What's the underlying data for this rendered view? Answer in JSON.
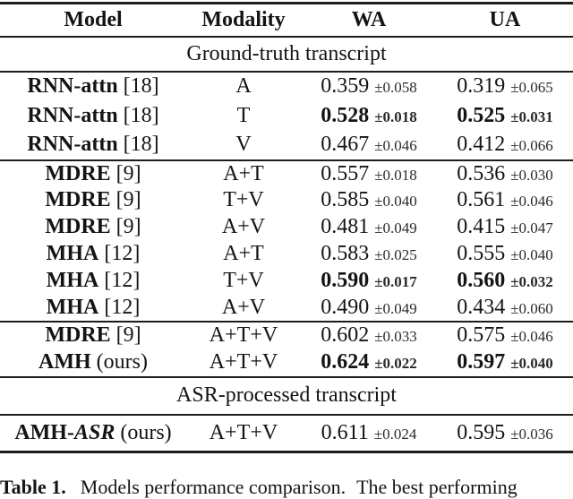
{
  "table": {
    "columns": [
      "Model",
      "Modality",
      "WA",
      "UA"
    ],
    "section1_label": "Ground-truth transcript",
    "section2_label": "ASR-processed transcript",
    "rows": [
      {
        "model": "RNN-attn",
        "ref": "[18]",
        "modality": "A",
        "wa": "0.359",
        "wa_err": "±0.058",
        "ua": "0.319",
        "ua_err": "±0.065"
      },
      {
        "model": "RNN-attn",
        "ref": "[18]",
        "modality": "T",
        "wa": "0.528",
        "wa_err": "±0.018",
        "ua": "0.525",
        "ua_err": "±0.031"
      },
      {
        "model": "RNN-attn",
        "ref": "[18]",
        "modality": "V",
        "wa": "0.467",
        "wa_err": "±0.046",
        "ua": "0.412",
        "ua_err": "±0.066"
      },
      {
        "model": "MDRE",
        "ref": "[9]",
        "modality": "A+T",
        "wa": "0.557",
        "wa_err": "±0.018",
        "ua": "0.536",
        "ua_err": "±0.030"
      },
      {
        "model": "MDRE",
        "ref": "[9]",
        "modality": "T+V",
        "wa": "0.585",
        "wa_err": "±0.040",
        "ua": "0.561",
        "ua_err": "±0.046"
      },
      {
        "model": "MDRE",
        "ref": "[9]",
        "modality": "A+V",
        "wa": "0.481",
        "wa_err": "±0.049",
        "ua": "0.415",
        "ua_err": "±0.047"
      },
      {
        "model": "MHA",
        "ref": "[12]",
        "modality": "A+T",
        "wa": "0.583",
        "wa_err": "±0.025",
        "ua": "0.555",
        "ua_err": "±0.040"
      },
      {
        "model": "MHA",
        "ref": "[12]",
        "modality": "T+V",
        "wa": "0.590",
        "wa_err": "±0.017",
        "ua": "0.560",
        "ua_err": "±0.032"
      },
      {
        "model": "MHA",
        "ref": "[12]",
        "modality": "A+V",
        "wa": "0.490",
        "wa_err": "±0.049",
        "ua": "0.434",
        "ua_err": "±0.060"
      },
      {
        "model": "MDRE",
        "ref": "[9]",
        "modality": "A+T+V",
        "wa": "0.602",
        "wa_err": "±0.033",
        "ua": "0.575",
        "ua_err": "±0.046"
      },
      {
        "model": "AMH",
        "ref": "(ours)",
        "modality": "A+T+V",
        "wa": "0.624",
        "wa_err": "±0.022",
        "ua": "0.597",
        "ua_err": "±0.040"
      },
      {
        "model": "AMH-",
        "model_italic": "ASR",
        "ref": "(ours)",
        "modality": "A+T+V",
        "wa": "0.611",
        "wa_err": "±0.024",
        "ua": "0.595",
        "ua_err": "±0.036"
      }
    ]
  },
  "caption": {
    "label": "Table 1.",
    "text_1": "Models performance comparison.",
    "text_2": "The best performing"
  }
}
